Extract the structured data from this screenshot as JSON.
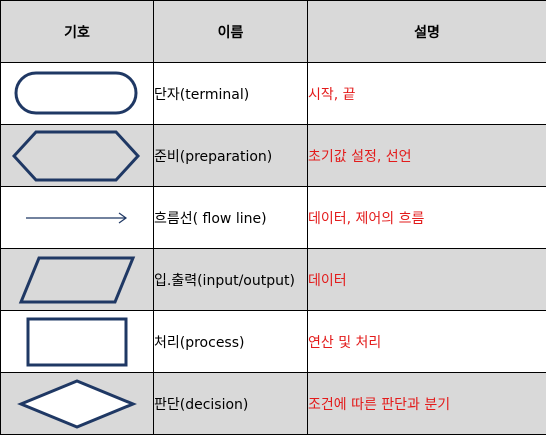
{
  "header": {
    "symbol": "기호",
    "name": "이름",
    "description": "설명"
  },
  "rows": [
    {
      "shape": "terminal-icon",
      "name": "단자(terminal)",
      "description": "시작, 끝"
    },
    {
      "shape": "preparation-icon",
      "name": "준비(preparation)",
      "description": "초기값 설정, 선언"
    },
    {
      "shape": "flow-line-icon",
      "name": "흐름선( flow line)",
      "description": "데이터, 제어의 흐름"
    },
    {
      "shape": "input-output-icon",
      "name": "입.출력(input/output)",
      "description": "데이터"
    },
    {
      "shape": "process-icon",
      "name": "처리(process)",
      "description": "연산 및 처리"
    },
    {
      "shape": "decision-icon",
      "name": "판단(decision)",
      "description": "조건에 따른 판단과 분기"
    }
  ],
  "colors": {
    "shape_stroke": "#1f3864",
    "description_text": "#e31b1b",
    "shaded_row": "#d9d9d9",
    "border": "#000000"
  }
}
